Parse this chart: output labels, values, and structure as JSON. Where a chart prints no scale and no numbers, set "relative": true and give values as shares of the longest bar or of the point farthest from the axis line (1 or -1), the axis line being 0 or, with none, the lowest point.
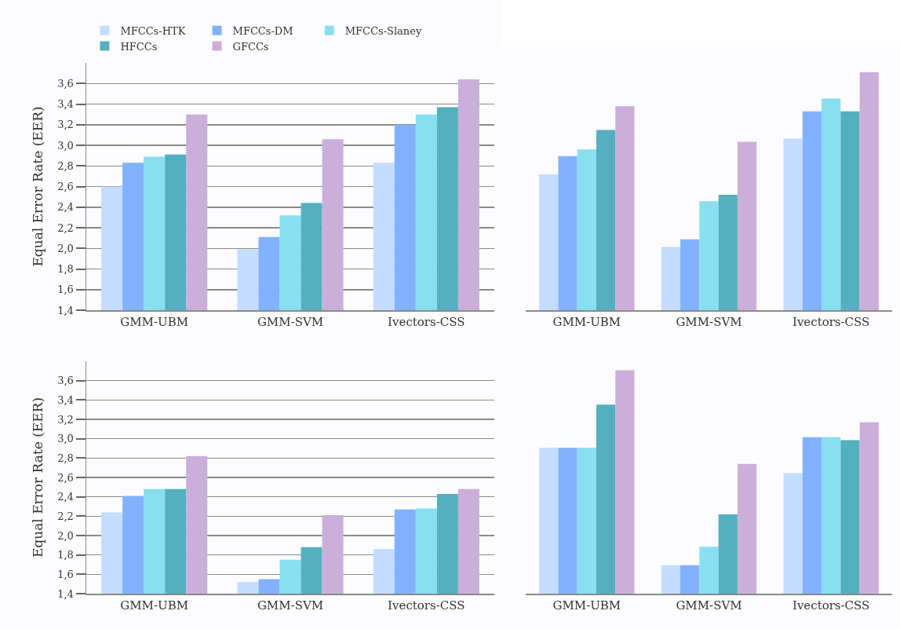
{
  "chart_data": [
    {
      "type": "bar",
      "ylabel": "Equal Error Rate (EER)",
      "categories": [
        "GMM-UBM",
        "GMM-SVM",
        "Ivectors-CSS"
      ],
      "ylim": [
        1.4,
        3.8
      ],
      "yticks": [
        {
          "value": 1.4,
          "label": "1,4"
        },
        {
          "value": 1.6,
          "label": "1,6"
        },
        {
          "value": 1.8,
          "label": "1,8"
        },
        {
          "value": 2.0,
          "label": "2,0"
        },
        {
          "value": 2.2,
          "label": "2,2"
        },
        {
          "value": 2.4,
          "label": "2,4"
        },
        {
          "value": 2.6,
          "label": "2,6"
        },
        {
          "value": 2.8,
          "label": "2,8"
        },
        {
          "value": 3.0,
          "label": "3,0"
        },
        {
          "value": 3.2,
          "label": "3,2"
        },
        {
          "value": 3.4,
          "label": "3,4"
        },
        {
          "value": 3.6,
          "label": "3,6"
        }
      ],
      "grid": "y",
      "legend": "top",
      "series": [
        {
          "name": "MFCCs-HTK",
          "color": "#c3dcff",
          "values": [
            2.6,
            1.99,
            2.83
          ]
        },
        {
          "name": "MFCCs-DM",
          "color": "#82b2fd",
          "values": [
            2.83,
            2.11,
            3.2
          ]
        },
        {
          "name": "MFCCs-Slaney",
          "color": "#88dff0",
          "values": [
            2.89,
            2.32,
            3.3
          ]
        },
        {
          "name": "HFCCs",
          "color": "#54b0be",
          "values": [
            2.91,
            2.44,
            3.37
          ]
        },
        {
          "name": "GFCCs",
          "color": "#cbafda",
          "values": [
            3.3,
            3.06,
            3.64
          ]
        }
      ]
    },
    {
      "type": "bar",
      "relative": true,
      "categories": [
        "GMM-UBM",
        "GMM-SVM",
        "Ivectors-CSS"
      ],
      "series": [
        {
          "color": "#c3dcff",
          "values": [
            0.571,
            0.267,
            0.721
          ]
        },
        {
          "color": "#82b2fd",
          "values": [
            0.648,
            0.298,
            0.836
          ]
        },
        {
          "color": "#88dff0",
          "values": [
            0.676,
            0.458,
            0.89
          ]
        },
        {
          "color": "#54b0be",
          "values": [
            0.758,
            0.485,
            0.836
          ]
        },
        {
          "color": "#cbafda",
          "values": [
            0.858,
            0.708,
            1
          ]
        }
      ]
    },
    {
      "type": "bar",
      "ylabel": "Equal Error Rate (EER)",
      "categories": [
        "GMM-UBM",
        "GMM-SVM",
        "Ivectors-CSS"
      ],
      "ylim": [
        1.4,
        3.8
      ],
      "yticks": [
        {
          "value": 1.4,
          "label": "1,4"
        },
        {
          "value": 1.6,
          "label": "1,6"
        },
        {
          "value": 1.8,
          "label": "1,8"
        },
        {
          "value": 2.0,
          "label": "2,0"
        },
        {
          "value": 2.2,
          "label": "2,2"
        },
        {
          "value": 2.4,
          "label": "2,4"
        },
        {
          "value": 2.6,
          "label": "2,6"
        },
        {
          "value": 2.8,
          "label": "2,8"
        },
        {
          "value": 3.0,
          "label": "3,0"
        },
        {
          "value": 3.2,
          "label": "3,2"
        },
        {
          "value": 3.4,
          "label": "3,4"
        },
        {
          "value": 3.6,
          "label": "3,6"
        }
      ],
      "grid": "y",
      "series": [
        {
          "color": "#c3dcff",
          "values": [
            2.24,
            1.52,
            1.86
          ]
        },
        {
          "color": "#82b2fd",
          "values": [
            2.41,
            1.55,
            2.27
          ]
        },
        {
          "color": "#88dff0",
          "values": [
            2.48,
            1.75,
            2.28
          ]
        },
        {
          "color": "#54b0be",
          "values": [
            2.48,
            1.88,
            2.43
          ]
        },
        {
          "color": "#cbafda",
          "values": [
            2.82,
            2.21,
            2.48
          ]
        }
      ]
    },
    {
      "type": "bar",
      "relative": true,
      "categories": [
        "GMM-UBM",
        "GMM-SVM",
        "Ivectors-CSS"
      ],
      "series": [
        {
          "color": "#c3dcff",
          "values": [
            0.653,
            0.127,
            0.539
          ]
        },
        {
          "color": "#82b2fd",
          "values": [
            0.653,
            0.127,
            0.7
          ]
        },
        {
          "color": "#88dff0",
          "values": [
            0.653,
            0.21,
            0.7
          ]
        },
        {
          "color": "#54b0be",
          "values": [
            0.846,
            0.355,
            0.687
          ]
        },
        {
          "color": "#cbafda",
          "values": [
            1,
            0.581,
            0.767
          ]
        }
      ]
    }
  ]
}
